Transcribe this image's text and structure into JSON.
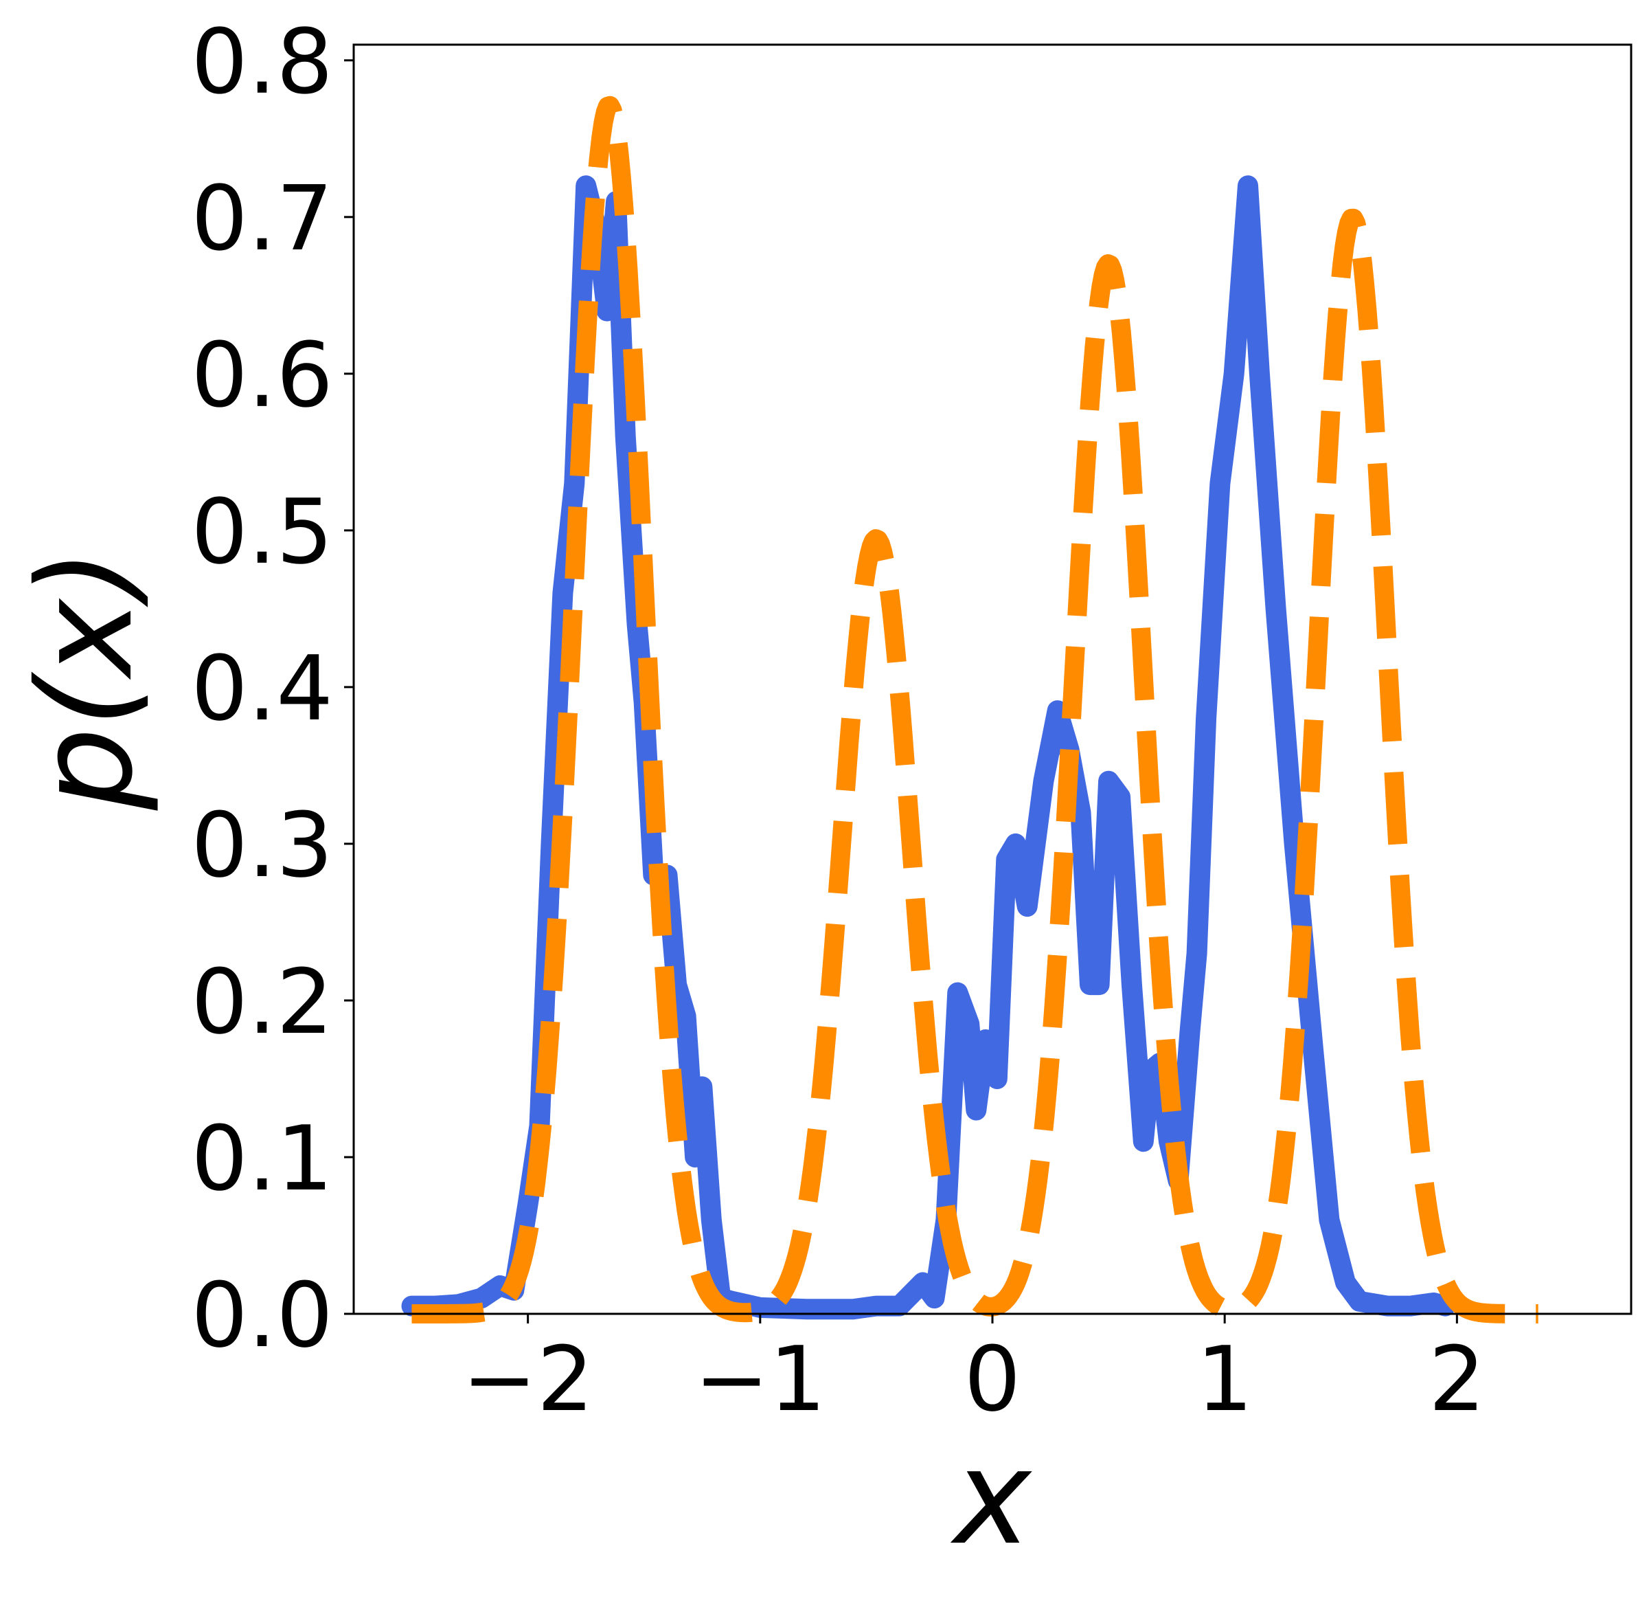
{
  "chart_data": {
    "type": "line",
    "xlabel": "x",
    "ylabel": "p(x)",
    "xlim": [
      -2.75,
      2.75
    ],
    "ylim": [
      0.0,
      0.81
    ],
    "xticks": [
      -2,
      -1,
      0,
      1,
      2
    ],
    "xtick_labels": [
      "−2",
      "−1",
      "0",
      "1",
      "2"
    ],
    "yticks": [
      0.0,
      0.1,
      0.2,
      0.3,
      0.4,
      0.5,
      0.6,
      0.7,
      0.8
    ],
    "ytick_labels": [
      "0.0",
      "0.1",
      "0.2",
      "0.3",
      "0.4",
      "0.5",
      "0.6",
      "0.7",
      "0.8"
    ],
    "grid": false,
    "legend": "none",
    "series": [
      {
        "style": "solid",
        "color": "#4169E1",
        "points": [
          [
            -2.5,
            0.005
          ],
          [
            -2.4,
            0.005
          ],
          [
            -2.3,
            0.006
          ],
          [
            -2.2,
            0.01
          ],
          [
            -2.12,
            0.018
          ],
          [
            -2.06,
            0.015
          ],
          [
            -2.0,
            0.07
          ],
          [
            -1.95,
            0.12
          ],
          [
            -1.9,
            0.3
          ],
          [
            -1.85,
            0.46
          ],
          [
            -1.8,
            0.53
          ],
          [
            -1.75,
            0.72
          ],
          [
            -1.7,
            0.69
          ],
          [
            -1.66,
            0.64
          ],
          [
            -1.62,
            0.71
          ],
          [
            -1.58,
            0.56
          ],
          [
            -1.53,
            0.44
          ],
          [
            -1.5,
            0.39
          ],
          [
            -1.46,
            0.28
          ],
          [
            -1.4,
            0.28
          ],
          [
            -1.36,
            0.21
          ],
          [
            -1.32,
            0.19
          ],
          [
            -1.28,
            0.1
          ],
          [
            -1.25,
            0.145
          ],
          [
            -1.21,
            0.06
          ],
          [
            -1.17,
            0.01
          ],
          [
            -1.12,
            0.008
          ],
          [
            -1.0,
            0.004
          ],
          [
            -0.8,
            0.003
          ],
          [
            -0.6,
            0.003
          ],
          [
            -0.5,
            0.005
          ],
          [
            -0.4,
            0.005
          ],
          [
            -0.3,
            0.02
          ],
          [
            -0.25,
            0.01
          ],
          [
            -0.2,
            0.06
          ],
          [
            -0.15,
            0.205
          ],
          [
            -0.1,
            0.185
          ],
          [
            -0.07,
            0.13
          ],
          [
            -0.03,
            0.175
          ],
          [
            0.02,
            0.15
          ],
          [
            0.06,
            0.29
          ],
          [
            0.1,
            0.3
          ],
          [
            0.15,
            0.26
          ],
          [
            0.22,
            0.34
          ],
          [
            0.28,
            0.385
          ],
          [
            0.33,
            0.36
          ],
          [
            0.38,
            0.32
          ],
          [
            0.42,
            0.21
          ],
          [
            0.46,
            0.21
          ],
          [
            0.5,
            0.34
          ],
          [
            0.55,
            0.33
          ],
          [
            0.6,
            0.21
          ],
          [
            0.65,
            0.11
          ],
          [
            0.68,
            0.155
          ],
          [
            0.72,
            0.16
          ],
          [
            0.76,
            0.11
          ],
          [
            0.8,
            0.085
          ],
          [
            0.85,
            0.18
          ],
          [
            0.88,
            0.23
          ],
          [
            0.92,
            0.38
          ],
          [
            0.98,
            0.53
          ],
          [
            1.04,
            0.6
          ],
          [
            1.1,
            0.72
          ],
          [
            1.15,
            0.6
          ],
          [
            1.22,
            0.45
          ],
          [
            1.3,
            0.3
          ],
          [
            1.38,
            0.17
          ],
          [
            1.45,
            0.06
          ],
          [
            1.52,
            0.02
          ],
          [
            1.58,
            0.008
          ],
          [
            1.7,
            0.005
          ],
          [
            1.8,
            0.005
          ],
          [
            1.9,
            0.007
          ],
          [
            1.95,
            0.005
          ]
        ]
      },
      {
        "style": "dashed",
        "color": "#FF8C00",
        "mixture": [
          {
            "weight": 0.29,
            "mean": -1.65,
            "sd": 0.15
          },
          {
            "weight": 0.186,
            "mean": -0.5,
            "sd": 0.15
          },
          {
            "weight": 0.252,
            "mean": 0.5,
            "sd": 0.15
          },
          {
            "weight": 0.263,
            "mean": 1.55,
            "sd": 0.15
          }
        ],
        "x_range": [
          -2.5,
          2.35
        ]
      }
    ]
  }
}
